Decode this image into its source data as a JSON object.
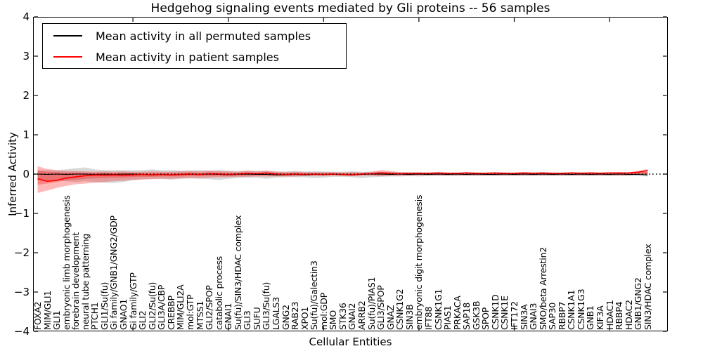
{
  "title": "Hedgehog signaling events mediated by Gli proteins -- 56 samples",
  "axes": {
    "ylabel": "Inferred Activity",
    "xlabel": "Cellular Entities",
    "yticks": [
      {
        "label": "4",
        "value": 4
      },
      {
        "label": "3",
        "value": 3
      },
      {
        "label": "2",
        "value": 2
      },
      {
        "label": "1",
        "value": 1
      },
      {
        "label": "0",
        "value": 0
      },
      {
        "label": "−1",
        "value": -1
      },
      {
        "label": "−2",
        "value": -2
      },
      {
        "label": "−3",
        "value": -3
      },
      {
        "label": "−4",
        "value": -4
      }
    ]
  },
  "legend": {
    "items": [
      {
        "label": "Mean activity in all permuted samples",
        "color": "#000000"
      },
      {
        "label": "Mean activity in patient samples",
        "color": "#ff0000"
      }
    ]
  },
  "colors": {
    "permuted_line": "#000000",
    "patient_line": "#ff0000",
    "patient_band": "rgba(255,0,0,0.28)",
    "permuted_band": "rgba(128,128,128,0.30)",
    "zero_line": "#000000"
  },
  "chart_data": {
    "type": "line",
    "title": "Hedgehog signaling events mediated by Gli proteins -- 56 samples",
    "xlabel": "Cellular Entities",
    "ylabel": "Inferred Activity",
    "ylim": [
      -4,
      4
    ],
    "grid": false,
    "legend_position": "upper left",
    "xtick_major_indices": [
      10,
      20,
      30,
      40,
      50,
      60
    ],
    "categories": [
      "FOXA2",
      "MIM/GLI1",
      "GLI1",
      "embryonic limb morphogenesis",
      "forebrain development",
      "neural tube patterning",
      "PTCH1",
      "GLI1/Su(fu)",
      "Gi family/GNB1/GNG2/GDP",
      "GNAO1",
      "Gi family/GTP",
      "GLI2",
      "GLI2/Su(fu)",
      "GLI3A/CBP",
      "CREBBP",
      "MIM/GLI2A",
      "mol:GTP",
      "MTSS1",
      "GLI2/SPOP",
      "catabolic process",
      "GNAI1",
      "Su(fu)/SIN3/HDAC complex",
      "GLI3",
      "SUFU",
      "GLI3/Su(fu)",
      "LGALS3",
      "GNG2",
      "RAB23",
      "XPO1",
      "Su(fu)/Galectin3",
      "mol:GDP",
      "SMO",
      "STK36",
      "GNAI2",
      "ARRB2",
      "Su(fu)/PIAS1",
      "GLI3/SPOP",
      "GNAZ",
      "CSNK1G2",
      "SIN3B",
      "embryonic digit morphogenesis",
      "IFT88",
      "CSNK1G1",
      "PIAS1",
      "PRKACA",
      "SAP18",
      "GSK3B",
      "SPOP",
      "CSNK1D",
      "CSNK1E",
      "IFT172",
      "SIN3A",
      "GNAI3",
      "SMO/beta Arrestin2",
      "SAP30",
      "RBBP7",
      "CSNK1A1",
      "CSNK1G3",
      "GNB1",
      "KIF3A",
      "HDAC1",
      "RBBP4",
      "HDAC2",
      "GNB1/GNG2",
      "SIN3/HDAC complex"
    ],
    "series": [
      {
        "name": "Mean activity in all permuted samples",
        "values": [
          0,
          -0.01,
          0,
          -0.01,
          0,
          0,
          -0.01,
          0,
          -0.01,
          0,
          0,
          -0.01,
          -0.02,
          -0.01,
          -0.02,
          -0.01,
          0,
          -0.01,
          0,
          -0.01,
          -0.02,
          -0.01,
          0,
          -0.01,
          -0.01,
          -0.02,
          -0.02,
          -0.01,
          -0.02,
          -0.01,
          -0.01,
          0,
          -0.01,
          -0.02,
          -0.01,
          0,
          0,
          -0.01,
          0,
          -0.01,
          0,
          -0.01,
          0,
          -0.01,
          0,
          -0.01,
          0,
          -0.01,
          -0.01,
          0,
          -0.01,
          0,
          -0.01,
          0,
          -0.01,
          0,
          -0.01,
          0,
          -0.01,
          0,
          -0.01,
          0,
          -0.01,
          -0.01,
          -0.02
        ]
      },
      {
        "name": "Mean activity in patient samples",
        "values": [
          -0.12,
          -0.18,
          -0.16,
          -0.1,
          -0.07,
          -0.04,
          -0.02,
          -0.03,
          -0.02,
          -0.03,
          -0.02,
          -0.01,
          -0.02,
          -0.01,
          -0.02,
          -0.01,
          0,
          -0.01,
          0.01,
          0,
          -0.01,
          0,
          0.02,
          0.01,
          0.03,
          0,
          -0.01,
          0,
          -0.01,
          0,
          -0.01,
          0,
          -0.01,
          -0.02,
          0,
          0.01,
          0.03,
          0.02,
          0.01,
          0.02,
          0.02,
          0.02,
          0.03,
          0.02,
          0.02,
          0.03,
          0.02,
          0.02,
          0.03,
          0.02,
          0.02,
          0.03,
          0.02,
          0.03,
          0.02,
          0.02,
          0.03,
          0.02,
          0.03,
          0.02,
          0.03,
          0.03,
          0.03,
          0.05,
          0.09
        ]
      }
    ],
    "bands": {
      "permuted_hi": [
        0.1,
        0.1,
        0.1,
        0.12,
        0.15,
        0.17,
        0.12,
        0.1,
        0.1,
        0.1,
        0.1,
        0.1,
        0.12,
        0.1,
        0.1,
        0.09,
        0.09,
        0.1,
        0.09,
        0.1,
        0.09,
        0.08,
        0.08,
        0.08,
        0.08,
        0.07,
        0.07,
        0.08,
        0.07,
        0.07,
        0.07,
        0.06,
        0.06,
        0.07,
        0.06,
        0.06,
        0.06,
        0.05,
        0.05,
        0.05,
        0.05,
        0.04,
        0.04,
        0.04,
        0.04,
        0.04,
        0.04,
        0.04,
        0.04,
        0.04,
        0.04,
        0.04,
        0.04,
        0.04,
        0.04,
        0.04,
        0.04,
        0.04,
        0.04,
        0.04,
        0.04,
        0.04,
        0.04,
        0.05,
        0.06
      ],
      "permuted_lo": [
        -0.12,
        -0.15,
        -0.15,
        -0.18,
        -0.2,
        -0.18,
        -0.2,
        -0.22,
        -0.23,
        -0.2,
        -0.15,
        -0.13,
        -0.12,
        -0.12,
        -0.14,
        -0.12,
        -0.11,
        -0.12,
        -0.13,
        -0.15,
        -0.12,
        -0.1,
        -0.09,
        -0.09,
        -0.12,
        -0.09,
        -0.08,
        -0.08,
        -0.08,
        -0.1,
        -0.09,
        -0.07,
        -0.07,
        -0.08,
        -0.1,
        -0.08,
        -0.07,
        -0.06,
        -0.06,
        -0.05,
        -0.06,
        -0.05,
        -0.05,
        -0.05,
        -0.05,
        -0.05,
        -0.05,
        -0.05,
        -0.05,
        -0.05,
        -0.05,
        -0.05,
        -0.05,
        -0.05,
        -0.05,
        -0.05,
        -0.05,
        -0.05,
        -0.05,
        -0.05,
        -0.05,
        -0.05,
        -0.05,
        -0.05,
        -0.06
      ],
      "patient_outer_hi": [
        0.2,
        0.13,
        0.1,
        0.08,
        0.08,
        0.07,
        0.06,
        0.07,
        0.06,
        0.07,
        0.06,
        0.06,
        0.07,
        0.06,
        0.06,
        0.07,
        0.08,
        0.07,
        0.09,
        0.08,
        0.07,
        0.06,
        0.09,
        0.07,
        0.09,
        0.06,
        0.05,
        0.06,
        0.05,
        0.05,
        0.05,
        0.05,
        0.04,
        0.05,
        0.04,
        0.06,
        0.1,
        0.08,
        0.05,
        0.04,
        0.04,
        0.04,
        0.04,
        0.04,
        0.03,
        0.04,
        0.04,
        0.03,
        0.04,
        0.04,
        0.03,
        0.04,
        0.04,
        0.03,
        0.04,
        0.03,
        0.04,
        0.04,
        0.03,
        0.04,
        0.04,
        0.04,
        0.04,
        0.08,
        0.13
      ],
      "patient_outer_lo": [
        -0.48,
        -0.42,
        -0.35,
        -0.3,
        -0.26,
        -0.24,
        -0.22,
        -0.2,
        -0.18,
        -0.17,
        -0.15,
        -0.14,
        -0.13,
        -0.12,
        -0.12,
        -0.11,
        -0.1,
        -0.1,
        -0.09,
        -0.08,
        -0.08,
        -0.07,
        -0.07,
        -0.06,
        -0.06,
        -0.06,
        -0.06,
        -0.06,
        -0.05,
        -0.05,
        -0.05,
        -0.04,
        -0.05,
        -0.05,
        -0.04,
        -0.04,
        -0.05,
        -0.04,
        -0.04,
        -0.04,
        -0.03,
        -0.03,
        -0.03,
        -0.03,
        -0.03,
        -0.03,
        -0.03,
        -0.03,
        -0.03,
        -0.03,
        -0.03,
        -0.03,
        -0.03,
        -0.03,
        -0.03,
        -0.03,
        -0.03,
        -0.03,
        -0.03,
        -0.03,
        -0.03,
        -0.03,
        -0.03,
        -0.01,
        0.0
      ],
      "patient_inner_hi": [
        0.09,
        0.06,
        0.05,
        0.04,
        0.04,
        0.03,
        0.03,
        0.03,
        0.03,
        0.03,
        0.03,
        0.03,
        0.03,
        0.03,
        0.03,
        0.03,
        0.04,
        0.03,
        0.04,
        0.04,
        0.03,
        0.03,
        0.04,
        0.03,
        0.04,
        0.03,
        0.02,
        0.03,
        0.02,
        0.02,
        0.02,
        0.02,
        0.02,
        0.02,
        0.02,
        0.03,
        0.05,
        0.04,
        0.02,
        0.02,
        0.02,
        0.02,
        0.02,
        0.02,
        0.02,
        0.02,
        0.02,
        0.02,
        0.02,
        0.02,
        0.02,
        0.02,
        0.02,
        0.02,
        0.02,
        0.02,
        0.02,
        0.02,
        0.02,
        0.02,
        0.02,
        0.02,
        0.02,
        0.04,
        0.06
      ],
      "patient_inner_lo": [
        -0.27,
        -0.24,
        -0.2,
        -0.16,
        -0.14,
        -0.12,
        -0.11,
        -0.1,
        -0.09,
        -0.09,
        -0.08,
        -0.07,
        -0.07,
        -0.06,
        -0.06,
        -0.06,
        -0.05,
        -0.05,
        -0.05,
        -0.04,
        -0.04,
        -0.04,
        -0.04,
        -0.03,
        -0.03,
        -0.03,
        -0.03,
        -0.03,
        -0.03,
        -0.03,
        -0.03,
        -0.02,
        -0.03,
        -0.03,
        -0.02,
        -0.02,
        -0.03,
        -0.02,
        -0.02,
        -0.02,
        -0.02,
        -0.02,
        -0.02,
        -0.02,
        -0.02,
        -0.02,
        -0.02,
        -0.02,
        -0.02,
        -0.02,
        -0.02,
        -0.02,
        -0.02,
        -0.02,
        -0.02,
        -0.02,
        -0.02,
        -0.02,
        -0.02,
        -0.02,
        -0.02,
        -0.02,
        -0.02,
        -0.01,
        0.0
      ]
    }
  }
}
